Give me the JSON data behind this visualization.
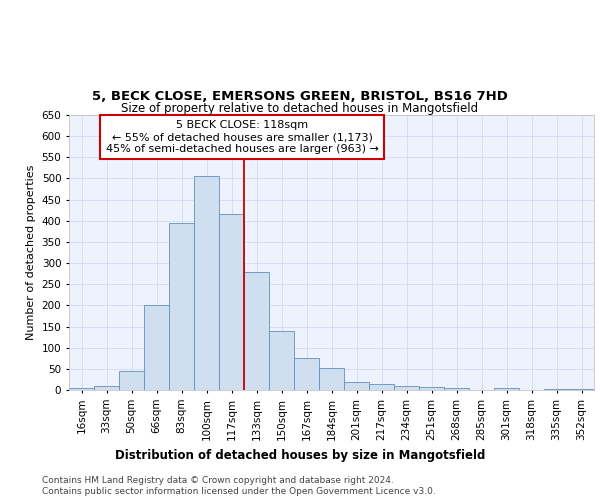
{
  "title_line1": "5, BECK CLOSE, EMERSONS GREEN, BRISTOL, BS16 7HD",
  "title_line2": "Size of property relative to detached houses in Mangotsfield",
  "xlabel": "Distribution of detached houses by size in Mangotsfield",
  "ylabel": "Number of detached properties",
  "categories": [
    "16sqm",
    "33sqm",
    "50sqm",
    "66sqm",
    "83sqm",
    "100sqm",
    "117sqm",
    "133sqm",
    "150sqm",
    "167sqm",
    "184sqm",
    "201sqm",
    "217sqm",
    "234sqm",
    "251sqm",
    "268sqm",
    "285sqm",
    "301sqm",
    "318sqm",
    "335sqm",
    "352sqm"
  ],
  "values": [
    5,
    10,
    45,
    200,
    395,
    507,
    417,
    278,
    140,
    75,
    52,
    20,
    15,
    10,
    7,
    4,
    1,
    5,
    1,
    2,
    2
  ],
  "bar_color": "#d0dff0",
  "bar_edge_color": "#6090c0",
  "vline_color": "#cc0000",
  "annotation_text": "5 BECK CLOSE: 118sqm\n← 55% of detached houses are smaller (1,173)\n45% of semi-detached houses are larger (963) →",
  "annotation_box_color": "#ffffff",
  "annotation_box_edge_color": "#cc0000",
  "grid_color": "#d0daf0",
  "background_color": "#eef2fc",
  "ylim": [
    0,
    650
  ],
  "yticks": [
    0,
    50,
    100,
    150,
    200,
    250,
    300,
    350,
    400,
    450,
    500,
    550,
    600,
    650
  ],
  "footer_line1": "Contains HM Land Registry data © Crown copyright and database right 2024.",
  "footer_line2": "Contains public sector information licensed under the Open Government Licence v3.0.",
  "title_fontsize": 9.5,
  "subtitle_fontsize": 8.5,
  "xlabel_fontsize": 8.5,
  "ylabel_fontsize": 8,
  "tick_fontsize": 7.5,
  "annotation_fontsize": 8,
  "footer_fontsize": 6.5
}
